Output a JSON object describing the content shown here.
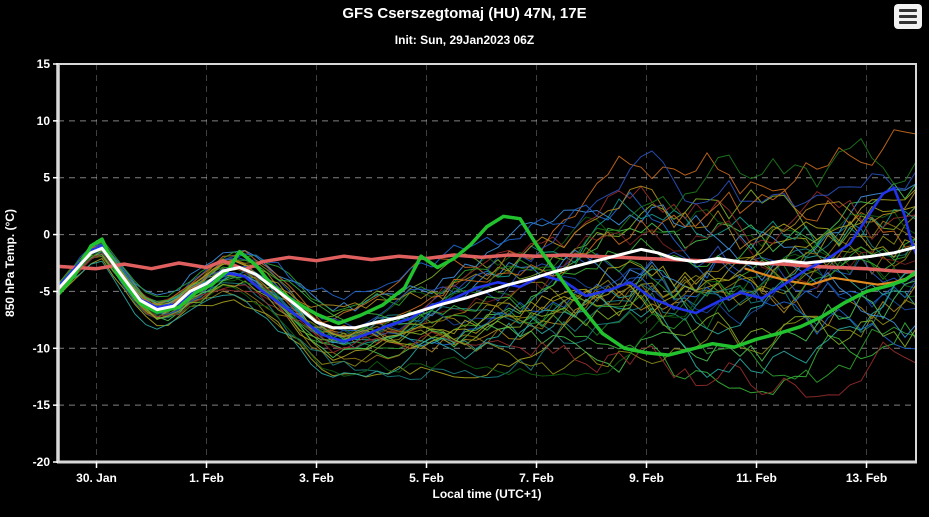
{
  "header": {
    "title": "GFS Cserszegtomaj (HU) 47N, 17E",
    "subtitle": "Init: Sun, 29Jan2023 06Z"
  },
  "menu": {
    "icon": "hamburger-menu-icon"
  },
  "colors": {
    "background": "#000000",
    "frame": "#d8d8d8",
    "text": "#ffffff",
    "grid": "rgba(255,255,255,0.5)",
    "grid_vertical": "rgba(255,255,255,0.25)"
  },
  "chart_data": {
    "type": "line",
    "title": "GFS Cserszegtomaj (HU) 47N, 17E",
    "subtitle": "Init: Sun, 29Jan2023 06Z",
    "xlabel": "Local time (UTC+1)",
    "ylabel": "850 hPa Temp. (°C)",
    "ylim": [
      -20,
      15
    ],
    "yticks": [
      15,
      10,
      5,
      0,
      -5,
      -10,
      -15,
      -20
    ],
    "x_domain": [
      29.3,
      44.9
    ],
    "xticks": [
      {
        "day": 30,
        "label": "30. Jan"
      },
      {
        "day": 32,
        "label": "1. Feb"
      },
      {
        "day": 34,
        "label": "3. Feb"
      },
      {
        "day": 36,
        "label": "5. Feb"
      },
      {
        "day": 38,
        "label": "7. Feb"
      },
      {
        "day": 40,
        "label": "9. Feb"
      },
      {
        "day": 42,
        "label": "11. Feb"
      },
      {
        "day": 44,
        "label": "13. Feb"
      }
    ],
    "grid": true,
    "series": [
      {
        "name": "orange-line",
        "color": "#e08a20",
        "width": 2.2,
        "points": [
          [
            41.8,
            -3.0
          ],
          [
            42.2,
            -3.6
          ],
          [
            42.6,
            -4.1
          ],
          [
            43.0,
            -4.4
          ],
          [
            43.4,
            -3.8
          ],
          [
            43.8,
            -4.1
          ],
          [
            44.2,
            -4.4
          ],
          [
            44.5,
            -4.2
          ],
          [
            44.7,
            -3.9
          ],
          [
            44.9,
            -3.5
          ]
        ]
      },
      {
        "name": "red-bold-line",
        "color": "#e06060",
        "width": 3.5,
        "points": [
          [
            29.3,
            -2.8
          ],
          [
            30.0,
            -3.0
          ],
          [
            30.5,
            -2.6
          ],
          [
            31.0,
            -3.0
          ],
          [
            31.5,
            -2.5
          ],
          [
            32.0,
            -2.9
          ],
          [
            32.3,
            -2.3
          ],
          [
            32.7,
            -3.1
          ],
          [
            33.0,
            -2.4
          ],
          [
            33.5,
            -2.0
          ],
          [
            34.0,
            -2.3
          ],
          [
            34.5,
            -1.9
          ],
          [
            35.0,
            -2.2
          ],
          [
            35.5,
            -1.9
          ],
          [
            36.0,
            -2.1
          ],
          [
            36.5,
            -1.8
          ],
          [
            37.0,
            -2.0
          ],
          [
            37.5,
            -1.8
          ],
          [
            38.0,
            -1.9
          ],
          [
            38.5,
            -1.8
          ],
          [
            39.0,
            -1.9
          ],
          [
            39.5,
            -2.0
          ],
          [
            40.0,
            -2.1
          ],
          [
            40.5,
            -2.2
          ],
          [
            41.0,
            -2.3
          ],
          [
            41.5,
            -2.4
          ],
          [
            42.0,
            -2.5
          ],
          [
            42.5,
            -2.6
          ],
          [
            43.0,
            -2.8
          ],
          [
            43.5,
            -2.9
          ],
          [
            44.0,
            -3.0
          ],
          [
            44.5,
            -3.2
          ],
          [
            44.9,
            -3.3
          ]
        ]
      },
      {
        "name": "blue-bold-line",
        "color": "#2233ee",
        "width": 2.6,
        "points": [
          [
            29.3,
            -4.6
          ],
          [
            29.6,
            -3.0
          ],
          [
            29.9,
            -1.4
          ],
          [
            30.1,
            -1.0
          ],
          [
            30.4,
            -3.3
          ],
          [
            30.8,
            -5.7
          ],
          [
            31.1,
            -6.4
          ],
          [
            31.5,
            -6.1
          ],
          [
            31.8,
            -4.9
          ],
          [
            32.1,
            -4.2
          ],
          [
            32.4,
            -3.4
          ],
          [
            32.7,
            -3.7
          ],
          [
            33.0,
            -4.9
          ],
          [
            33.4,
            -6.3
          ],
          [
            33.8,
            -7.7
          ],
          [
            34.1,
            -8.8
          ],
          [
            34.5,
            -9.4
          ],
          [
            34.9,
            -8.8
          ],
          [
            35.3,
            -8.0
          ],
          [
            35.7,
            -7.4
          ],
          [
            36.1,
            -6.2
          ],
          [
            36.5,
            -5.6
          ],
          [
            36.9,
            -4.7
          ],
          [
            37.3,
            -4.2
          ],
          [
            37.7,
            -4.6
          ],
          [
            38.1,
            -3.6
          ],
          [
            38.5,
            -4.1
          ],
          [
            38.9,
            -5.4
          ],
          [
            39.3,
            -4.9
          ],
          [
            39.7,
            -4.2
          ],
          [
            40.1,
            -5.6
          ],
          [
            40.5,
            -6.4
          ],
          [
            40.9,
            -6.9
          ],
          [
            41.3,
            -5.9
          ],
          [
            41.7,
            -5.1
          ],
          [
            42.1,
            -5.6
          ],
          [
            42.5,
            -4.4
          ],
          [
            42.9,
            -3.1
          ],
          [
            43.3,
            -2.1
          ],
          [
            43.7,
            -0.8
          ],
          [
            44.0,
            1.4
          ],
          [
            44.3,
            3.6
          ],
          [
            44.5,
            4.1
          ],
          [
            44.7,
            1.6
          ],
          [
            44.8,
            -0.4
          ],
          [
            44.9,
            -1.7
          ]
        ]
      },
      {
        "name": "green-bold-line",
        "color": "#22c22f",
        "width": 3.5,
        "points": [
          [
            29.3,
            -5.3
          ],
          [
            29.6,
            -3.6
          ],
          [
            29.9,
            -1.0
          ],
          [
            30.1,
            -0.4
          ],
          [
            30.4,
            -3.6
          ],
          [
            30.8,
            -6.1
          ],
          [
            31.1,
            -6.8
          ],
          [
            31.5,
            -6.4
          ],
          [
            31.8,
            -5.1
          ],
          [
            32.1,
            -4.4
          ],
          [
            32.4,
            -3.1
          ],
          [
            32.6,
            -1.5
          ],
          [
            32.9,
            -2.7
          ],
          [
            33.2,
            -4.5
          ],
          [
            33.6,
            -5.9
          ],
          [
            34.0,
            -7.0
          ],
          [
            34.4,
            -7.8
          ],
          [
            34.8,
            -7.1
          ],
          [
            35.2,
            -6.2
          ],
          [
            35.6,
            -4.7
          ],
          [
            35.9,
            -1.9
          ],
          [
            36.2,
            -2.9
          ],
          [
            36.5,
            -2.1
          ],
          [
            36.8,
            -0.9
          ],
          [
            37.1,
            0.7
          ],
          [
            37.4,
            1.6
          ],
          [
            37.7,
            1.4
          ],
          [
            38.0,
            -0.9
          ],
          [
            38.4,
            -3.6
          ],
          [
            38.8,
            -6.3
          ],
          [
            39.2,
            -8.7
          ],
          [
            39.6,
            -10.0
          ],
          [
            40.0,
            -10.4
          ],
          [
            40.4,
            -10.6
          ],
          [
            40.8,
            -10.1
          ],
          [
            41.2,
            -9.6
          ],
          [
            41.6,
            -9.9
          ],
          [
            42.0,
            -9.2
          ],
          [
            42.4,
            -8.7
          ],
          [
            42.8,
            -8.1
          ],
          [
            43.2,
            -7.2
          ],
          [
            43.6,
            -6.0
          ],
          [
            44.0,
            -5.0
          ],
          [
            44.4,
            -4.5
          ],
          [
            44.7,
            -4.0
          ],
          [
            44.9,
            -3.3
          ]
        ]
      },
      {
        "name": "white-mean-line",
        "color": "#ffffff",
        "width": 3,
        "points": [
          [
            29.3,
            -4.8
          ],
          [
            29.6,
            -3.2
          ],
          [
            29.9,
            -1.6
          ],
          [
            30.1,
            -1.2
          ],
          [
            30.4,
            -3.2
          ],
          [
            30.8,
            -5.8
          ],
          [
            31.1,
            -6.6
          ],
          [
            31.4,
            -6.3
          ],
          [
            31.7,
            -5.0
          ],
          [
            32.0,
            -4.3
          ],
          [
            32.3,
            -3.2
          ],
          [
            32.6,
            -2.9
          ],
          [
            32.9,
            -3.5
          ],
          [
            33.2,
            -4.6
          ],
          [
            33.6,
            -6.1
          ],
          [
            34.0,
            -7.7
          ],
          [
            34.3,
            -8.2
          ],
          [
            34.7,
            -8.2
          ],
          [
            35.1,
            -7.7
          ],
          [
            35.5,
            -7.3
          ],
          [
            35.9,
            -6.7
          ],
          [
            36.3,
            -6.1
          ],
          [
            36.7,
            -5.6
          ],
          [
            37.1,
            -5.0
          ],
          [
            37.5,
            -4.4
          ],
          [
            37.9,
            -3.9
          ],
          [
            38.3,
            -3.3
          ],
          [
            38.7,
            -2.8
          ],
          [
            39.1,
            -2.3
          ],
          [
            39.5,
            -1.8
          ],
          [
            39.9,
            -1.3
          ],
          [
            40.2,
            -1.6
          ],
          [
            40.5,
            -2.1
          ],
          [
            40.9,
            -2.4
          ],
          [
            41.3,
            -2.1
          ],
          [
            41.7,
            -2.4
          ],
          [
            42.1,
            -2.6
          ],
          [
            42.5,
            -2.3
          ],
          [
            42.9,
            -2.5
          ],
          [
            43.3,
            -2.3
          ],
          [
            43.7,
            -2.1
          ],
          [
            44.1,
            -1.9
          ],
          [
            44.5,
            -1.6
          ],
          [
            44.9,
            -1.1
          ]
        ]
      }
    ],
    "ensemble_members": {
      "count": 38,
      "seed": 20230129,
      "line_width": 1,
      "colors": [
        "#1d7a1d",
        "#2e9e2e",
        "#39b339",
        "#0f5f0f",
        "#49c04f",
        "#7fae2a",
        "#8a8a17",
        "#a9a21f",
        "#8f7514",
        "#b08a1e",
        "#2a52be",
        "#1e66d0",
        "#3f8fdd",
        "#1747a0",
        "#2aa7a0",
        "#1d8080",
        "#0f9b8e",
        "#962c2c",
        "#7a1f1f",
        "#c96a1e",
        "#2e9e2e",
        "#8a8a17",
        "#1e66d0",
        "#1d8080",
        "#49c04f",
        "#a9a21f",
        "#3f8fdd",
        "#0f5f0f",
        "#b08a1e",
        "#2a52be",
        "#962c2c",
        "#39b339",
        "#8f7514",
        "#2aa7a0",
        "#7fae2a",
        "#c96a1e",
        "#1d7a1d",
        "#a9a21f"
      ],
      "spread_envelope": {
        "x": [
          29.3,
          30.5,
          31.5,
          33.0,
          34.5,
          36.0,
          37.5,
          39.0,
          41.0,
          43.0,
          44.9
        ],
        "s": [
          0.7,
          0.9,
          1.1,
          1.8,
          2.4,
          3.2,
          4.2,
          5.2,
          5.8,
          6.2,
          6.3
        ]
      },
      "value_clamp": [
        -17.6,
        11.6
      ]
    }
  }
}
